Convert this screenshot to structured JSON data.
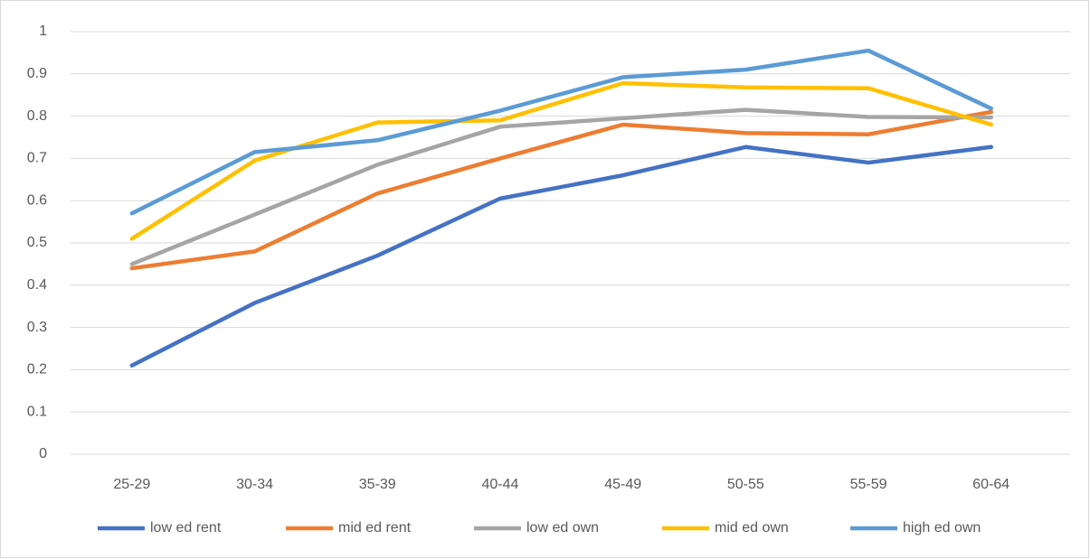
{
  "chart_data": {
    "type": "line",
    "categories": [
      "25-29",
      "30-34",
      "35-39",
      "40-44",
      "45-49",
      "50-55",
      "55-59",
      "60-64"
    ],
    "series": [
      {
        "name": "low ed rent",
        "color": "#4472c4",
        "values": [
          0.21,
          0.358,
          0.47,
          0.605,
          0.66,
          0.727,
          0.69,
          0.727
        ]
      },
      {
        "name": "mid ed rent",
        "color": "#ed7d31",
        "values": [
          0.44,
          0.48,
          0.617,
          0.7,
          0.78,
          0.76,
          0.757,
          0.81
        ]
      },
      {
        "name": "low ed own",
        "color": "#a5a5a5",
        "values": [
          0.45,
          0.567,
          0.685,
          0.775,
          0.795,
          0.815,
          0.798,
          0.797
        ]
      },
      {
        "name": "mid ed own",
        "color": "#ffc000",
        "values": [
          0.51,
          0.695,
          0.785,
          0.79,
          0.878,
          0.868,
          0.866,
          0.78
        ]
      },
      {
        "name": "high ed own",
        "color": "#5b9bd5",
        "values": [
          0.57,
          0.715,
          0.743,
          0.813,
          0.892,
          0.91,
          0.955,
          0.818
        ]
      }
    ],
    "ylim": [
      0,
      1
    ],
    "yticks": [
      0,
      0.1,
      0.2,
      0.3,
      0.4,
      0.5,
      0.6,
      0.7,
      0.8,
      0.9,
      1
    ],
    "grid": true,
    "legend": "bottom"
  }
}
